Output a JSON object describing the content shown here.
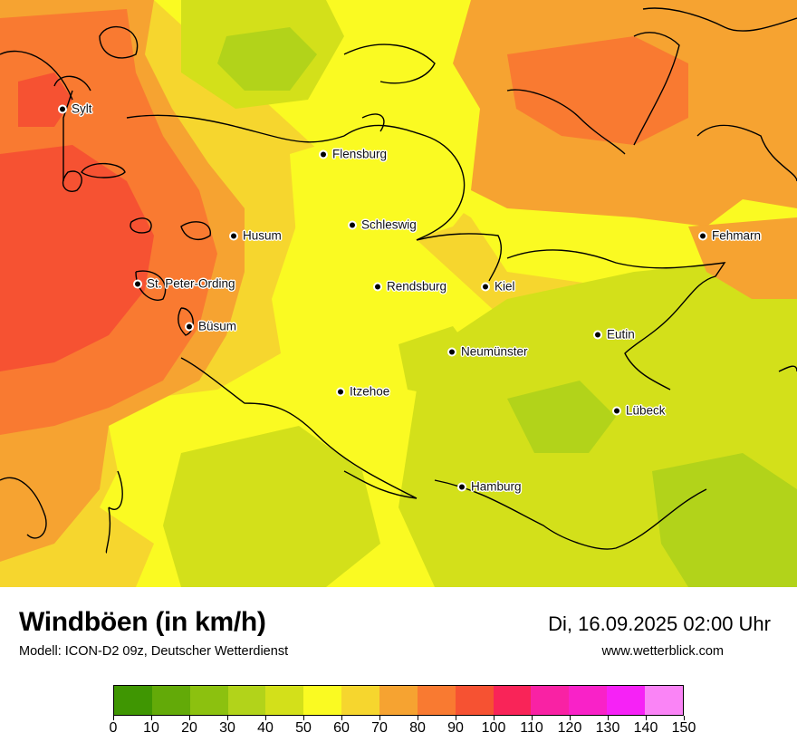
{
  "title": "Windböen (in km/h)",
  "model": "Modell: ICON-D2 09z, Deutscher Wetterdienst",
  "datetime": "Di, 16.09.2025 02:00 Uhr",
  "website": "www.wetterblick.com",
  "colors": {
    "c40": "#d3e01a",
    "c50": "#fafa22",
    "c60": "#f6d62e",
    "c70": "#f6a331",
    "c80": "#f97a31",
    "c90": "#f65232",
    "c30": "#b2d31a",
    "coast": "#000000"
  },
  "legend": {
    "colors": [
      "#3f9602",
      "#63aa08",
      "#8cc10f",
      "#b2d31a",
      "#d3e01a",
      "#fafa22",
      "#f6d62e",
      "#f6a331",
      "#f97a31",
      "#f65232",
      "#f92458",
      "#f922a4",
      "#f922c8",
      "#f622f6",
      "#fa84f6"
    ],
    "labels": [
      "0",
      "10",
      "20",
      "30",
      "40",
      "50",
      "60",
      "70",
      "80",
      "90",
      "100",
      "110",
      "120",
      "130",
      "140",
      "150"
    ]
  },
  "cities": [
    {
      "name": "Sylt"
    },
    {
      "name": "Flensburg"
    },
    {
      "name": "Schleswig"
    },
    {
      "name": "Husum"
    },
    {
      "name": "Fehmarn"
    },
    {
      "name": "St. Peter-Ording"
    },
    {
      "name": "Rendsburg"
    },
    {
      "name": "Kiel"
    },
    {
      "name": "Büsum"
    },
    {
      "name": "Eutin"
    },
    {
      "name": "Neumünster"
    },
    {
      "name": "Itzehoe"
    },
    {
      "name": "Lübeck"
    },
    {
      "name": "Hamburg"
    }
  ]
}
